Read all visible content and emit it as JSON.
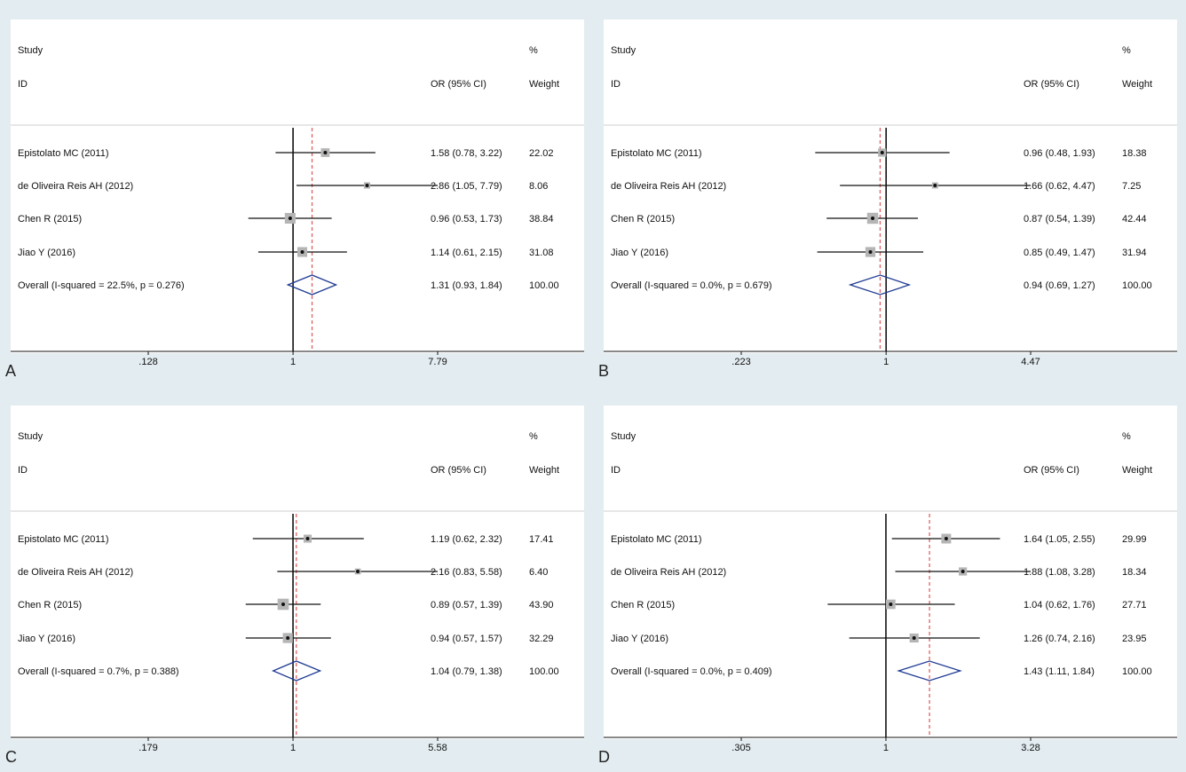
{
  "colors": {
    "background": "#e3ecf1",
    "panel": "#ffffff",
    "ref_line": "#111111",
    "pooled_line": "#e06060",
    "diamond": "#1f3a93",
    "weight_box": "#b5b5b5"
  },
  "chart_data": [
    {
      "type": "forest",
      "panel_label": "A",
      "header": {
        "study": "Study",
        "id": "ID",
        "or_label": "OR (95% CI)",
        "pct": "%",
        "weight": "Weight"
      },
      "x_scale": "log",
      "xlim": [
        0.128,
        7.79
      ],
      "x_ticks": [
        ".128",
        "1",
        "7.79"
      ],
      "null_value": 1,
      "studies": [
        {
          "label": "Epistolato MC (2011)",
          "or": 1.58,
          "lo": 0.78,
          "hi": 3.22,
          "or_text": "1.58 (0.78, 3.22)",
          "weight": 22.02,
          "weight_text": "22.02"
        },
        {
          "label": "de Oliveira Reis AH (2012)",
          "or": 2.86,
          "lo": 1.05,
          "hi": 7.79,
          "or_text": "2.86 (1.05, 7.79)",
          "weight": 8.06,
          "weight_text": "8.06"
        },
        {
          "label": "Chen R (2015)",
          "or": 0.96,
          "lo": 0.53,
          "hi": 1.73,
          "or_text": "0.96 (0.53, 1.73)",
          "weight": 38.84,
          "weight_text": "38.84"
        },
        {
          "label": "Jiao Y (2016)",
          "or": 1.14,
          "lo": 0.61,
          "hi": 2.15,
          "or_text": "1.14 (0.61, 2.15)",
          "weight": 31.08,
          "weight_text": "31.08"
        }
      ],
      "overall": {
        "label": "Overall  (I-squared = 22.5%, p = 0.276)",
        "or": 1.31,
        "lo": 0.93,
        "hi": 1.84,
        "or_text": "1.31 (0.93, 1.84)",
        "weight_text": "100.00"
      }
    },
    {
      "type": "forest",
      "panel_label": "B",
      "header": {
        "study": "Study",
        "id": "ID",
        "or_label": "OR (95% CI)",
        "pct": "%",
        "weight": "Weight"
      },
      "x_scale": "log",
      "xlim": [
        0.223,
        4.47
      ],
      "x_ticks": [
        ".223",
        "1",
        "4.47"
      ],
      "null_value": 1,
      "studies": [
        {
          "label": "Epistolato MC (2011)",
          "or": 0.96,
          "lo": 0.48,
          "hi": 1.93,
          "or_text": "0.96 (0.48, 1.93)",
          "weight": 18.38,
          "weight_text": "18.38"
        },
        {
          "label": "de Oliveira Reis AH (2012)",
          "or": 1.66,
          "lo": 0.62,
          "hi": 4.47,
          "or_text": "1.66 (0.62, 4.47)",
          "weight": 7.25,
          "weight_text": "7.25"
        },
        {
          "label": "Chen R (2015)",
          "or": 0.87,
          "lo": 0.54,
          "hi": 1.39,
          "or_text": "0.87 (0.54, 1.39)",
          "weight": 42.44,
          "weight_text": "42.44"
        },
        {
          "label": "Jiao Y (2016)",
          "or": 0.85,
          "lo": 0.49,
          "hi": 1.47,
          "or_text": "0.85 (0.49, 1.47)",
          "weight": 31.94,
          "weight_text": "31.94"
        }
      ],
      "overall": {
        "label": "Overall  (I-squared = 0.0%, p = 0.679)",
        "or": 0.94,
        "lo": 0.69,
        "hi": 1.27,
        "or_text": "0.94 (0.69, 1.27)",
        "weight_text": "100.00"
      }
    },
    {
      "type": "forest",
      "panel_label": "C",
      "header": {
        "study": "Study",
        "id": "ID",
        "or_label": "OR (95% CI)",
        "pct": "%",
        "weight": "Weight"
      },
      "x_scale": "log",
      "xlim": [
        0.179,
        5.58
      ],
      "x_ticks": [
        ".179",
        "1",
        "5.58"
      ],
      "null_value": 1,
      "studies": [
        {
          "label": "Epistolato MC (2011)",
          "or": 1.19,
          "lo": 0.62,
          "hi": 2.32,
          "or_text": "1.19 (0.62, 2.32)",
          "weight": 17.41,
          "weight_text": "17.41"
        },
        {
          "label": "de Oliveira Reis AH (2012)",
          "or": 2.16,
          "lo": 0.83,
          "hi": 5.58,
          "or_text": "2.16 (0.83, 5.58)",
          "weight": 6.4,
          "weight_text": "6.40"
        },
        {
          "label": "Chen R (2015)",
          "or": 0.89,
          "lo": 0.57,
          "hi": 1.39,
          "or_text": "0.89 (0.57, 1.39)",
          "weight": 43.9,
          "weight_text": "43.90"
        },
        {
          "label": "Jiao Y (2016)",
          "or": 0.94,
          "lo": 0.57,
          "hi": 1.57,
          "or_text": "0.94 (0.57, 1.57)",
          "weight": 32.29,
          "weight_text": "32.29"
        }
      ],
      "overall": {
        "label": "Overall  (I-squared = 0.7%, p = 0.388)",
        "or": 1.04,
        "lo": 0.79,
        "hi": 1.38,
        "or_text": "1.04 (0.79, 1.38)",
        "weight_text": "100.00"
      }
    },
    {
      "type": "forest",
      "panel_label": "D",
      "header": {
        "study": "Study",
        "id": "ID",
        "or_label": "OR (95% CI)",
        "pct": "%",
        "weight": "Weight"
      },
      "x_scale": "log",
      "xlim": [
        0.305,
        3.28
      ],
      "x_ticks": [
        ".305",
        "1",
        "3.28"
      ],
      "null_value": 1,
      "studies": [
        {
          "label": "Epistolato MC (2011)",
          "or": 1.64,
          "lo": 1.05,
          "hi": 2.55,
          "or_text": "1.64 (1.05, 2.55)",
          "weight": 29.99,
          "weight_text": "29.99"
        },
        {
          "label": "de Oliveira Reis AH (2012)",
          "or": 1.88,
          "lo": 1.08,
          "hi": 3.28,
          "or_text": "1.88 (1.08, 3.28)",
          "weight": 18.34,
          "weight_text": "18.34"
        },
        {
          "label": "Chen R (2015)",
          "or": 1.04,
          "lo": 0.62,
          "hi": 1.76,
          "or_text": "1.04 (0.62, 1.76)",
          "weight": 27.71,
          "weight_text": "27.71"
        },
        {
          "label": "Jiao Y (2016)",
          "or": 1.26,
          "lo": 0.74,
          "hi": 2.16,
          "or_text": "1.26 (0.74, 2.16)",
          "weight": 23.95,
          "weight_text": "23.95"
        }
      ],
      "overall": {
        "label": "Overall  (I-squared = 0.0%, p = 0.409)",
        "or": 1.43,
        "lo": 1.11,
        "hi": 1.84,
        "or_text": "1.43 (1.11, 1.84)",
        "weight_text": "100.00"
      }
    }
  ]
}
